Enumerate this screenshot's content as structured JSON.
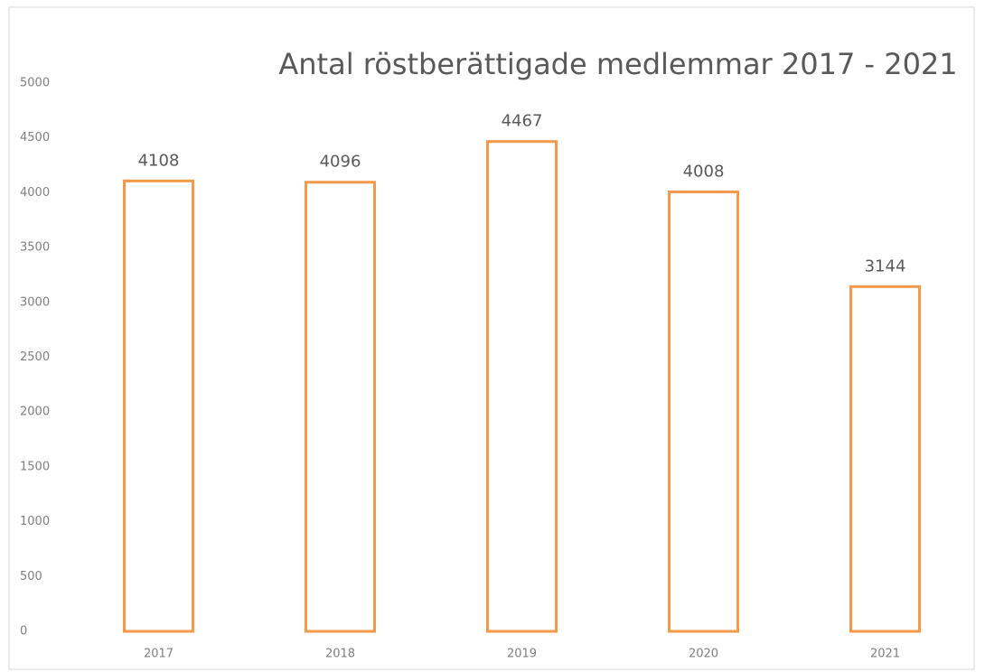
{
  "chart_data": {
    "type": "bar",
    "title": "Antal röstberättigade medlemmar 2017 - 2021",
    "categories": [
      "2017",
      "2018",
      "2019",
      "2020",
      "2021"
    ],
    "values": [
      4108,
      4096,
      4467,
      4008,
      3144
    ],
    "color": "#f4984a",
    "ylim": [
      0,
      5000
    ],
    "yticks": [
      0,
      500,
      1000,
      1500,
      2000,
      2500,
      3000,
      3500,
      4000,
      4500,
      5000
    ],
    "grid": false
  }
}
